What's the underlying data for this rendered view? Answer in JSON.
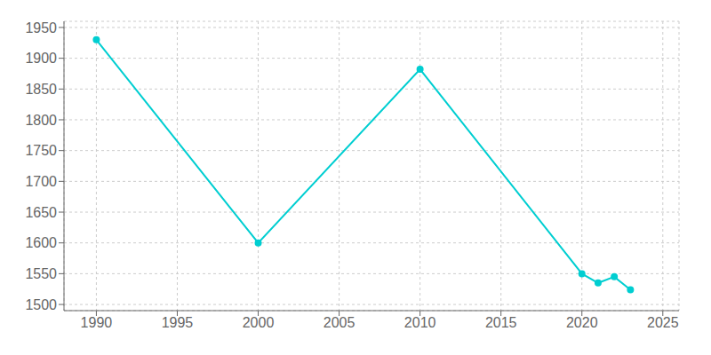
{
  "chart_data": {
    "type": "line",
    "x": [
      1990,
      2000,
      2010,
      2020,
      2021,
      2022,
      2023
    ],
    "values": [
      1930,
      1600,
      1882,
      1550,
      1535,
      1545,
      1524
    ],
    "color": "#00CED1",
    "marker": "o",
    "xlim": [
      1988,
      2026
    ],
    "ylim": [
      1490,
      1960
    ],
    "xticks": [
      1990,
      1995,
      2000,
      2005,
      2010,
      2015,
      2020,
      2025
    ],
    "yticks": [
      1500,
      1550,
      1600,
      1650,
      1700,
      1750,
      1800,
      1850,
      1900,
      1950
    ],
    "grid": true
  }
}
